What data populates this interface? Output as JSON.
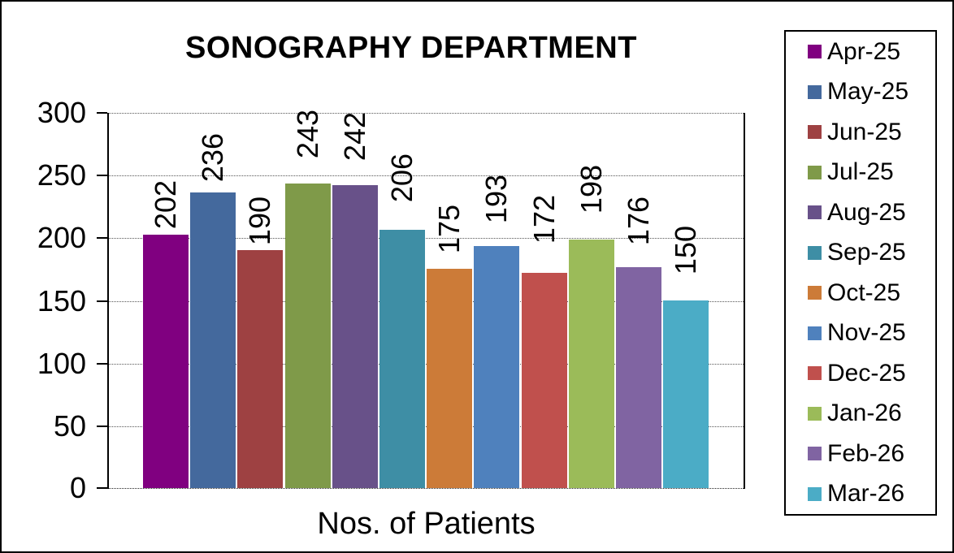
{
  "chart_data": {
    "type": "bar",
    "title": "SONOGRAPHY DEPARTMENT",
    "xlabel": "Nos. of Patients",
    "ylabel": "",
    "ylim": [
      0,
      300
    ],
    "yticks": [
      0,
      50,
      100,
      150,
      200,
      250,
      300
    ],
    "grid": "horizontal-dotted",
    "legend_position": "right",
    "data_labels": "rotated-90-above-bars",
    "categories": [
      "Apr-25",
      "May-25",
      "Jun-25",
      "Jul-25",
      "Aug-25",
      "Sep-25",
      "Oct-25",
      "Nov-25",
      "Dec-25",
      "Jan-26",
      "Feb-26",
      "Mar-26"
    ],
    "values": [
      202,
      236,
      190,
      243,
      242,
      206,
      175,
      193,
      172,
      198,
      176,
      150
    ],
    "colors": [
      "#800080",
      "#44699D",
      "#9E4142",
      "#7F9A49",
      "#685189",
      "#3E8EA5",
      "#CC7B38",
      "#4F81BD",
      "#C0504D",
      "#9BBB59",
      "#8064A2",
      "#4BACC6"
    ],
    "axis_color": "#000000",
    "background_color": "#FFFFFF"
  }
}
